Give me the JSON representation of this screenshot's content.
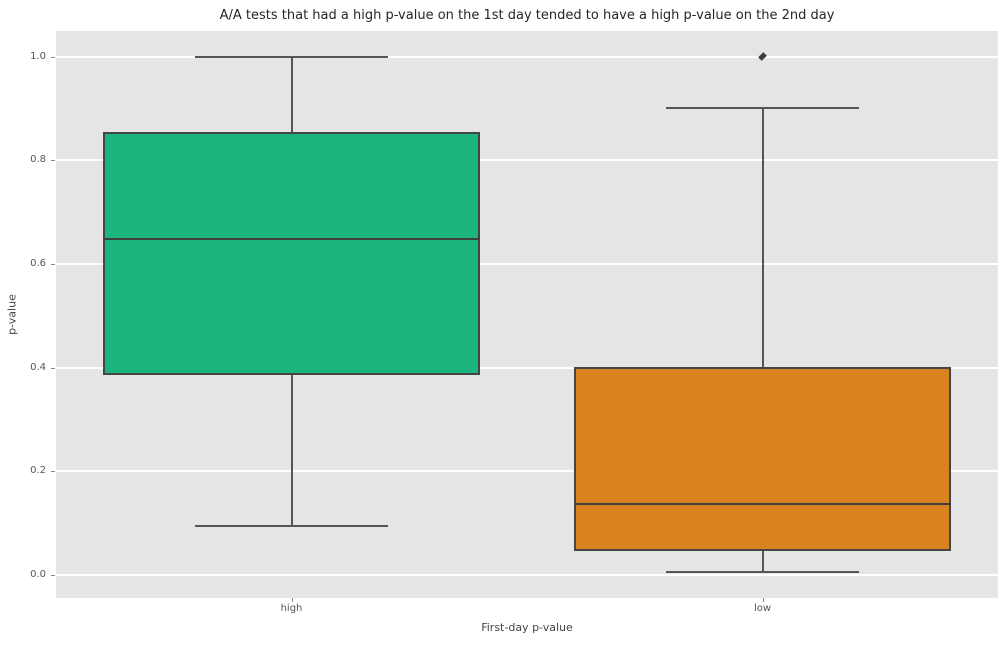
{
  "title": "A/A tests that had a high p-value on the 1st day tended to have a high p-value on the 2nd day",
  "axes": {
    "xlabel": "First-day p-value",
    "ylabel": "p-value",
    "ytick_labels": [
      "1.0",
      "0.8",
      "0.6",
      "0.4",
      "0.2",
      "0.0"
    ],
    "ytick_values": [
      1.0,
      0.8,
      0.6,
      0.4,
      0.2,
      0.0
    ]
  },
  "chart_data": {
    "type": "box",
    "title": "A/A tests that had a high p-value on the 1st day tended to have a high p-value on the 2nd day",
    "xlabel": "First-day p-value",
    "ylabel": "p-value",
    "categories": [
      "high",
      "low"
    ],
    "series": [
      {
        "category": "high",
        "whisker_low": 0.095,
        "q1": 0.385,
        "median": 0.648,
        "q3": 0.855,
        "whisker_high": 1.0,
        "outliers": [],
        "color": "#1cb57e"
      },
      {
        "category": "low",
        "whisker_low": 0.005,
        "q1": 0.046,
        "median": 0.137,
        "q3": 0.401,
        "whisker_high": 0.902,
        "outliers": [
          1.0
        ],
        "color": "#d9831f"
      }
    ],
    "ylim": [
      -0.045,
      1.05
    ],
    "grid": "horizontal-white-on-gray",
    "legend": "none",
    "colors": {
      "plot_background": "#e5e5e6",
      "figure_background": "#ffffff",
      "gridline": "#ffffff",
      "box_edge": "#454545",
      "whisker": "#555555",
      "tick_text": "#555555",
      "title_text": "#262626"
    }
  }
}
